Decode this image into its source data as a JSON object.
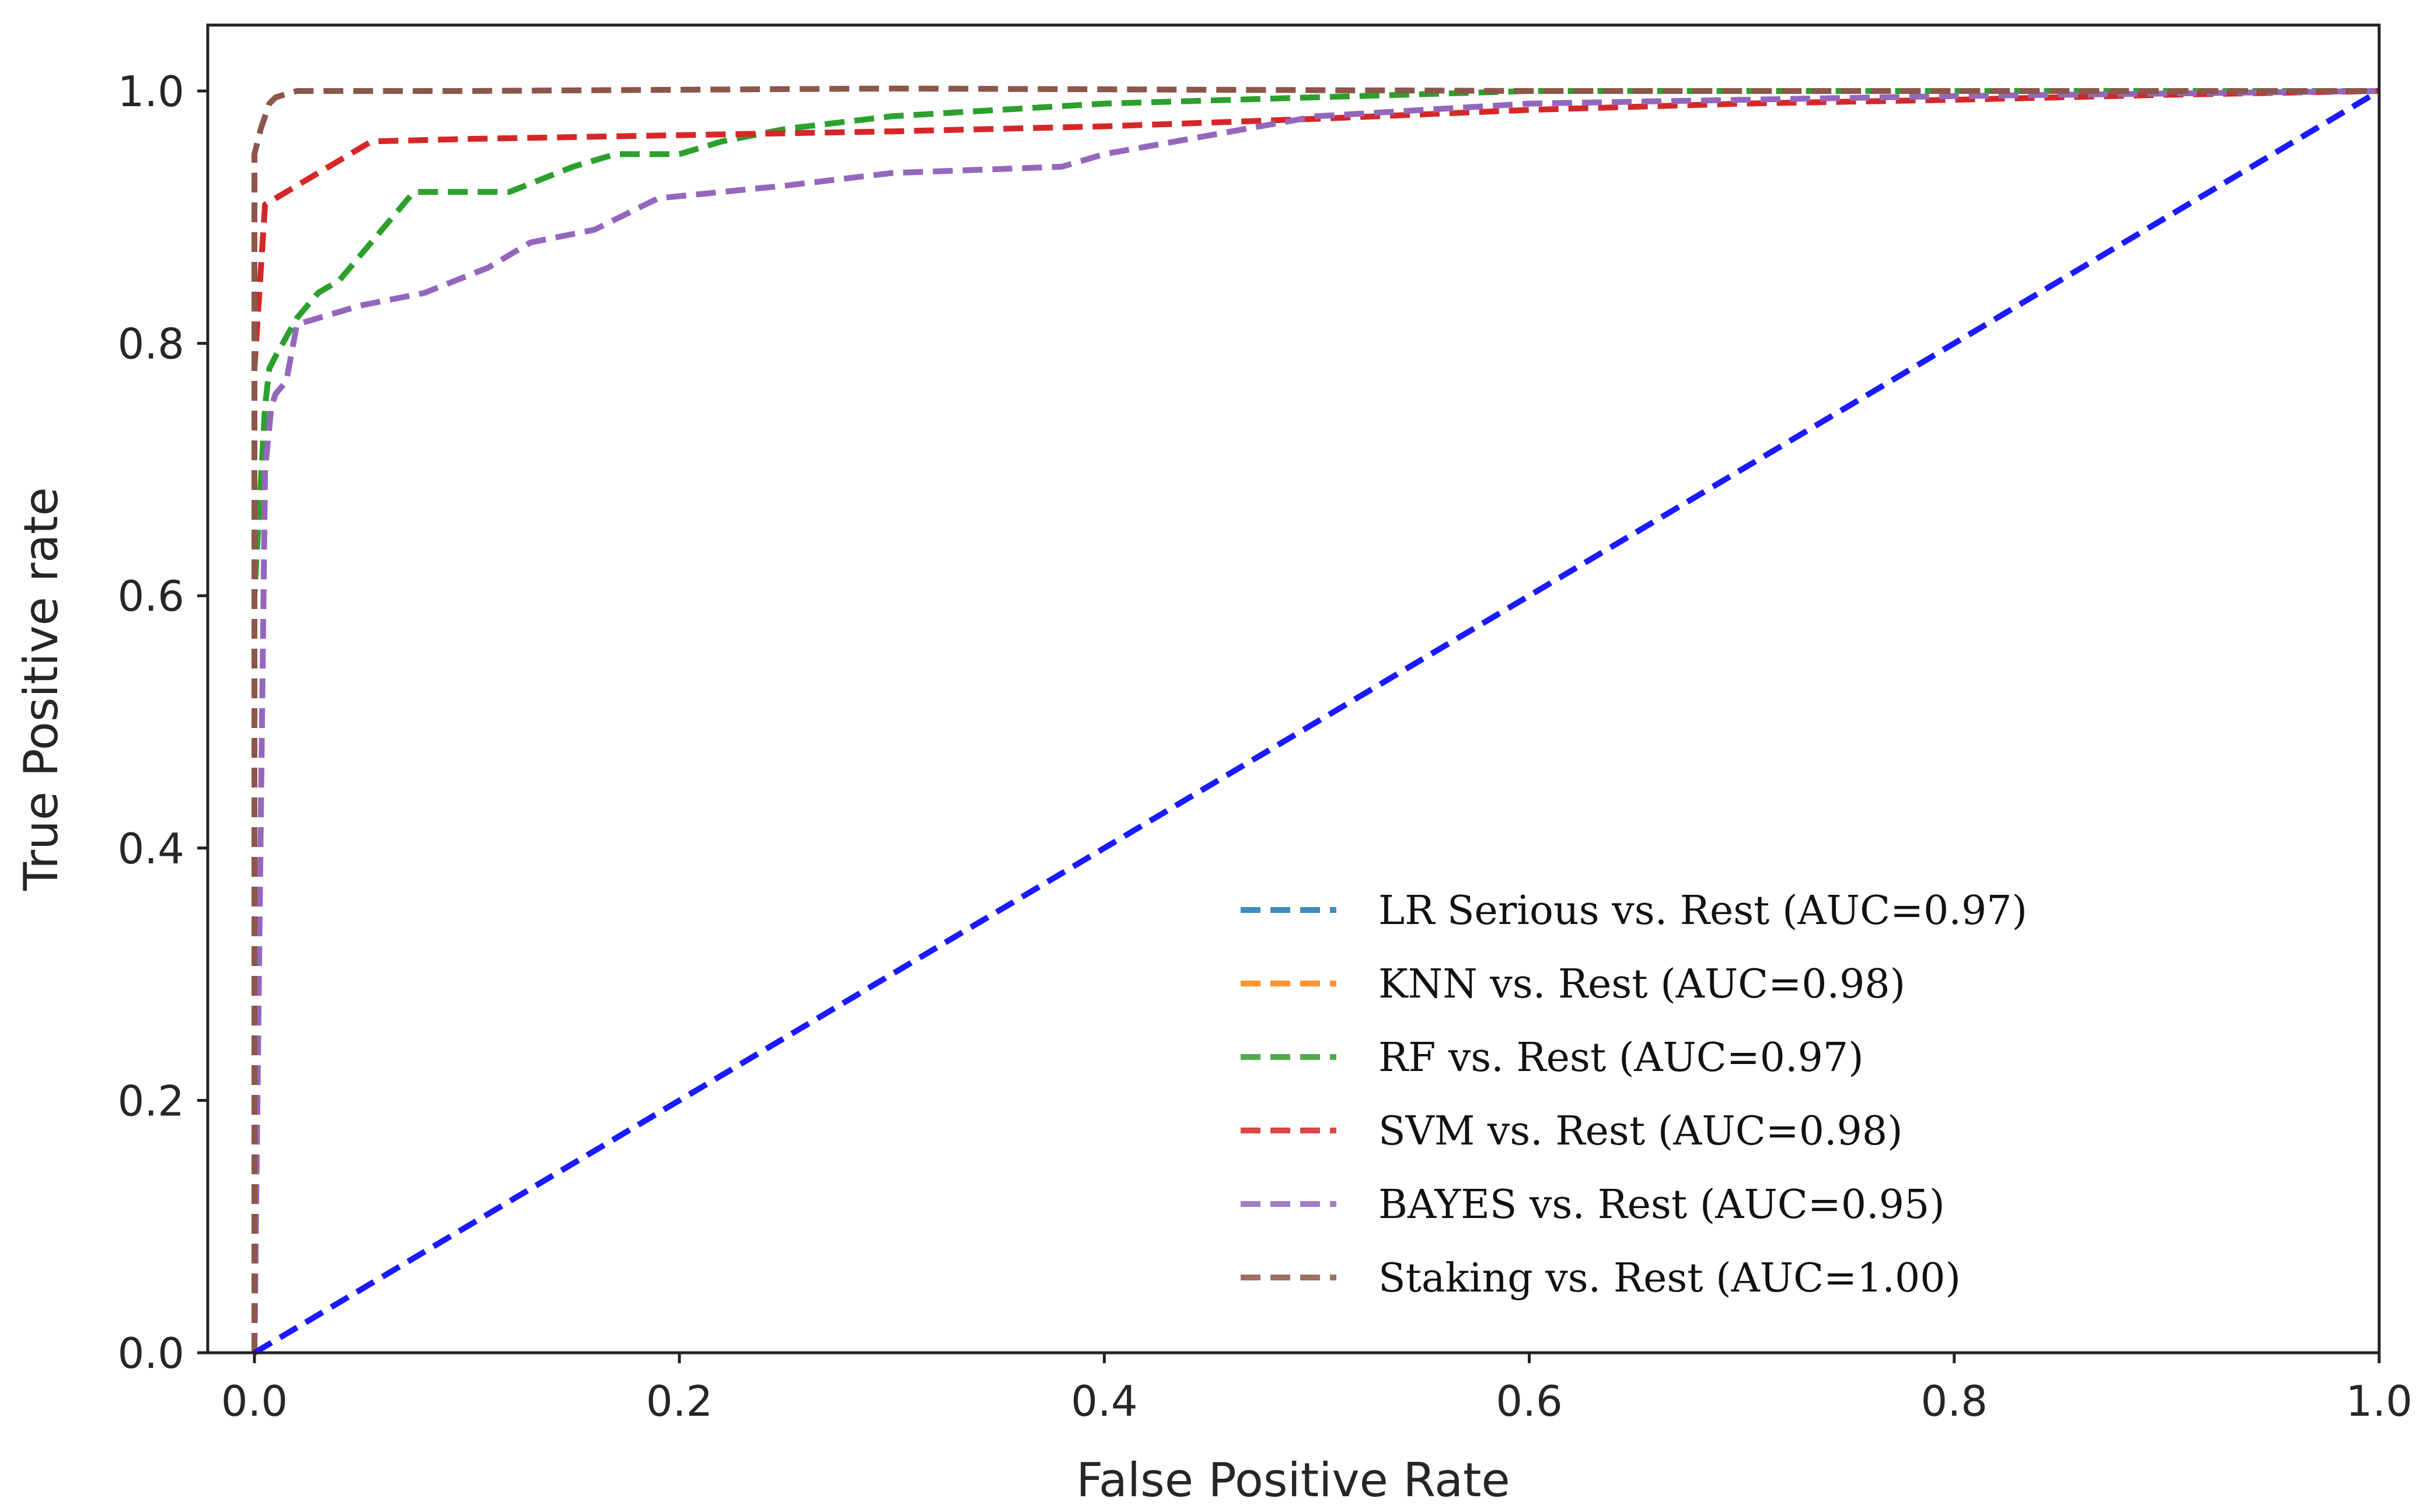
{
  "chart_data": {
    "type": "line",
    "title": "",
    "xlabel": "False Positive Rate",
    "ylabel": "True Positive rate",
    "xlim": [
      0.0,
      1.0
    ],
    "ylim": [
      0.0,
      1.0
    ],
    "grid": false,
    "legend_position": "lower-right",
    "x_ticks": [
      "0.0",
      "0.2",
      "0.4",
      "0.6",
      "0.8",
      "1.0"
    ],
    "y_ticks": [
      "0.0",
      "0.2",
      "0.4",
      "0.6",
      "0.8",
      "1.0"
    ],
    "series": [
      {
        "name": "LR Serious vs. Rest (AUC=0.97)",
        "color": "#1f77b4",
        "style": "dashed",
        "x": [],
        "y": []
      },
      {
        "name": "KNN vs. Rest (AUC=0.98)",
        "color": "#ff7f0e",
        "style": "dashed",
        "x": [],
        "y": []
      },
      {
        "name": "RF vs. Rest (AUC=0.97)",
        "color": "#2ca02c",
        "style": "dashed",
        "x": [
          0.0,
          0.0,
          0.005,
          0.007,
          0.01,
          0.02,
          0.03,
          0.04,
          0.05,
          0.06,
          0.075,
          0.09,
          0.12,
          0.15,
          0.17,
          0.2,
          0.22,
          0.25,
          0.3,
          0.4,
          0.5,
          0.6,
          1.0
        ],
        "y": [
          0.0,
          0.6,
          0.75,
          0.78,
          0.79,
          0.82,
          0.84,
          0.85,
          0.87,
          0.89,
          0.92,
          0.92,
          0.92,
          0.94,
          0.95,
          0.95,
          0.96,
          0.97,
          0.98,
          0.99,
          0.995,
          1.0,
          1.0
        ]
      },
      {
        "name": "SVM vs. Rest (AUC=0.98)",
        "color": "#d62728",
        "style": "dashed",
        "x": [
          0.0,
          0.0,
          0.005,
          0.01,
          0.02,
          0.03,
          0.04,
          0.055,
          0.1,
          0.2,
          0.3,
          0.4,
          0.5,
          0.6,
          0.7,
          0.8,
          0.9,
          1.0
        ],
        "y": [
          0.0,
          0.78,
          0.91,
          0.915,
          0.925,
          0.935,
          0.945,
          0.96,
          0.962,
          0.965,
          0.968,
          0.972,
          0.978,
          0.985,
          0.99,
          0.993,
          0.997,
          1.0
        ]
      },
      {
        "name": "BAYES vs. Rest (AUC=0.95)",
        "color": "#9467bd",
        "style": "dashed",
        "x": [
          0.0,
          0.003,
          0.005,
          0.008,
          0.01,
          0.015,
          0.02,
          0.03,
          0.05,
          0.08,
          0.11,
          0.13,
          0.16,
          0.19,
          0.22,
          0.25,
          0.3,
          0.38,
          0.4,
          0.45,
          0.5,
          0.6,
          0.7,
          0.8,
          1.0
        ],
        "y": [
          0.0,
          0.42,
          0.7,
          0.75,
          0.76,
          0.77,
          0.815,
          0.82,
          0.83,
          0.84,
          0.86,
          0.88,
          0.89,
          0.915,
          0.92,
          0.925,
          0.935,
          0.94,
          0.95,
          0.965,
          0.98,
          0.99,
          0.993,
          0.996,
          1.0
        ]
      },
      {
        "name": "Staking vs. Rest (AUC=1.00)",
        "color": "#8c564b",
        "style": "dashed",
        "x": [
          0.0,
          0.0,
          0.003,
          0.007,
          0.01,
          0.02,
          0.1,
          0.3,
          0.6,
          1.0
        ],
        "y": [
          0.0,
          0.95,
          0.97,
          0.99,
          0.995,
          1.0,
          1.0,
          1.002,
          1.0,
          1.0
        ]
      },
      {
        "name": "",
        "color": "#1a1aff",
        "style": "dashed",
        "x": [
          0.0,
          1.0
        ],
        "y": [
          0.0,
          1.0
        ]
      }
    ]
  }
}
